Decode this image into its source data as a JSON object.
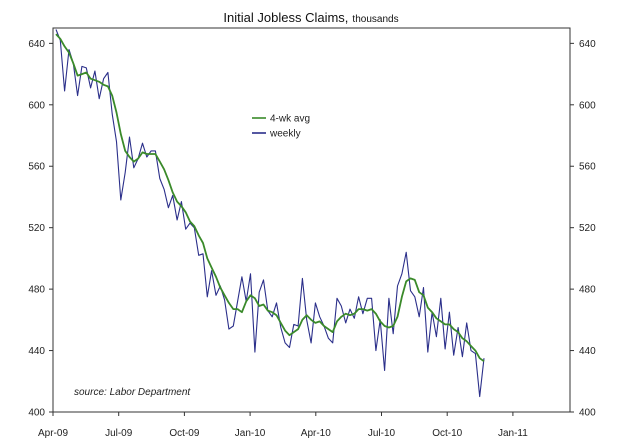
{
  "chart_data": {
    "type": "line",
    "title": "Initial Jobless Claims,",
    "title_suffix": "thousands",
    "source_note": "source: Labor Department",
    "xlabel": "",
    "ylabel": "",
    "ylim": [
      400,
      650
    ],
    "yticks": [
      400,
      440,
      480,
      520,
      560,
      600,
      640
    ],
    "xticks": [
      "Apr-09",
      "Jul-09",
      "Oct-09",
      "Jan-10",
      "Apr-10",
      "Jul-10",
      "Oct-10",
      "Jan-11"
    ],
    "legend": {
      "placement": "upper-center",
      "entries": [
        "4-wk avg",
        "weekly"
      ]
    },
    "grid": false,
    "series": [
      {
        "name": "weekly",
        "color": "#2b2f8a",
        "values": [
          649,
          642,
          609,
          636,
          627,
          606,
          625,
          624,
          611,
          622,
          604,
          617,
          621,
          594,
          576,
          538,
          556,
          579,
          559,
          565,
          575,
          566,
          570,
          570,
          552,
          545,
          533,
          541,
          525,
          537,
          519,
          523,
          520,
          502,
          503,
          475,
          492,
          476,
          482,
          473,
          454,
          456,
          472,
          488,
          472,
          490,
          439,
          478,
          486,
          466,
          462,
          471,
          455,
          445,
          442,
          457,
          456,
          487,
          460,
          445,
          471,
          462,
          456,
          448,
          445,
          474,
          469,
          458,
          467,
          461,
          475,
          464,
          474,
          474,
          440,
          460,
          427,
          474,
          451,
          482,
          490,
          504,
          479,
          475,
          462,
          481,
          439,
          465,
          449,
          474,
          441,
          465,
          437,
          455,
          436,
          458,
          440,
          438,
          410,
          435
        ]
      },
      {
        "name": "4-wk avg",
        "color": "#3a8a2a",
        "values": [
          646,
          643,
          638,
          634,
          627,
          619,
          620,
          621,
          617,
          616,
          615,
          613,
          612,
          606,
          595,
          581,
          570,
          566,
          563,
          565,
          569,
          568,
          568,
          568,
          563,
          558,
          551,
          543,
          537,
          534,
          530,
          524,
          521,
          515,
          510,
          500,
          494,
          488,
          481,
          476,
          471,
          467,
          467,
          465,
          472,
          476,
          474,
          469,
          470,
          466,
          465,
          463,
          458,
          453,
          450,
          452,
          454,
          460,
          463,
          460,
          458,
          459,
          456,
          454,
          452,
          459,
          462,
          464,
          463,
          464,
          467,
          467,
          466,
          467,
          464,
          459,
          456,
          455,
          456,
          462,
          475,
          485,
          487,
          486,
          478,
          476,
          468,
          465,
          461,
          459,
          457,
          457,
          454,
          452,
          448,
          446,
          443,
          440,
          435,
          433
        ]
      }
    ]
  }
}
